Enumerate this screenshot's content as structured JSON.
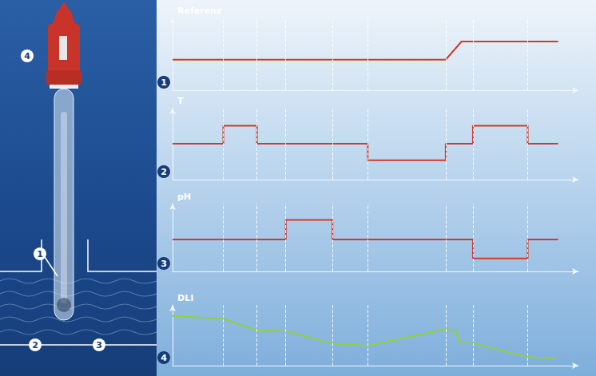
{
  "diagram": {
    "labels": [
      "1",
      "2",
      "3",
      "4"
    ]
  },
  "chart_data": [
    {
      "type": "line",
      "title": "Referenz",
      "panel_label": "1",
      "color": "#d23a2b",
      "x": [
        0,
        67.3,
        71.2,
        95
      ],
      "values": [
        4.2,
        4.2,
        6.7,
        6.7
      ],
      "xlim": [
        0,
        100
      ],
      "ylim": [
        0,
        10
      ],
      "events": [
        12.5,
        20.8,
        27.9,
        39.4,
        48.1,
        67.3,
        74.0,
        87.5
      ],
      "grid": false,
      "tick_labels": false
    },
    {
      "type": "line",
      "title": "T",
      "panel_label": "2",
      "color": "#d23a2b",
      "x": [
        0,
        12.5,
        12.5,
        20.8,
        20.8,
        48.1,
        48.1,
        67.3,
        67.3,
        74.0,
        74.0,
        87.5,
        87.5,
        95
      ],
      "values": [
        5,
        5,
        7.5,
        7.5,
        5,
        5,
        2.7,
        2.7,
        5,
        5,
        7.5,
        7.5,
        5,
        5
      ],
      "xlim": [
        0,
        100
      ],
      "ylim": [
        0,
        10
      ],
      "events": [
        12.5,
        20.8,
        27.9,
        39.4,
        48.1,
        67.3,
        74.0,
        87.5
      ],
      "grid": false,
      "tick_labels": false
    },
    {
      "type": "line",
      "title": "pH",
      "panel_label": "3",
      "color": "#d23a2b",
      "x": [
        0,
        27.9,
        27.9,
        39.4,
        39.4,
        74.0,
        74.0,
        87.5,
        87.5,
        95
      ],
      "values": [
        4.7,
        4.7,
        7.6,
        7.6,
        4.7,
        4.7,
        1.9,
        1.9,
        4.7,
        4.7
      ],
      "xlim": [
        0,
        100
      ],
      "ylim": [
        0,
        10
      ],
      "events": [
        12.5,
        20.8,
        27.9,
        39.4,
        48.1,
        67.3,
        74.0,
        87.5
      ],
      "grid": false,
      "tick_labels": false
    },
    {
      "type": "line",
      "title": "DLI",
      "panel_label": "4",
      "color": "#8fd13c",
      "x": [
        0,
        12.5,
        20.8,
        27.9,
        39.4,
        48.1,
        67.3,
        69.8,
        70.8,
        74.0,
        87.5,
        94.2
      ],
      "values": [
        8.2,
        7.7,
        5.8,
        5.7,
        3.6,
        3.3,
        6.0,
        5.9,
        3.7,
        3.7,
        1.4,
        1.2
      ],
      "xlim": [
        0,
        100
      ],
      "ylim": [
        0,
        10
      ],
      "events": [
        12.5,
        20.8,
        27.9,
        39.4,
        48.1,
        67.3,
        74.0,
        87.5
      ],
      "grid": false,
      "tick_labels": false
    }
  ]
}
